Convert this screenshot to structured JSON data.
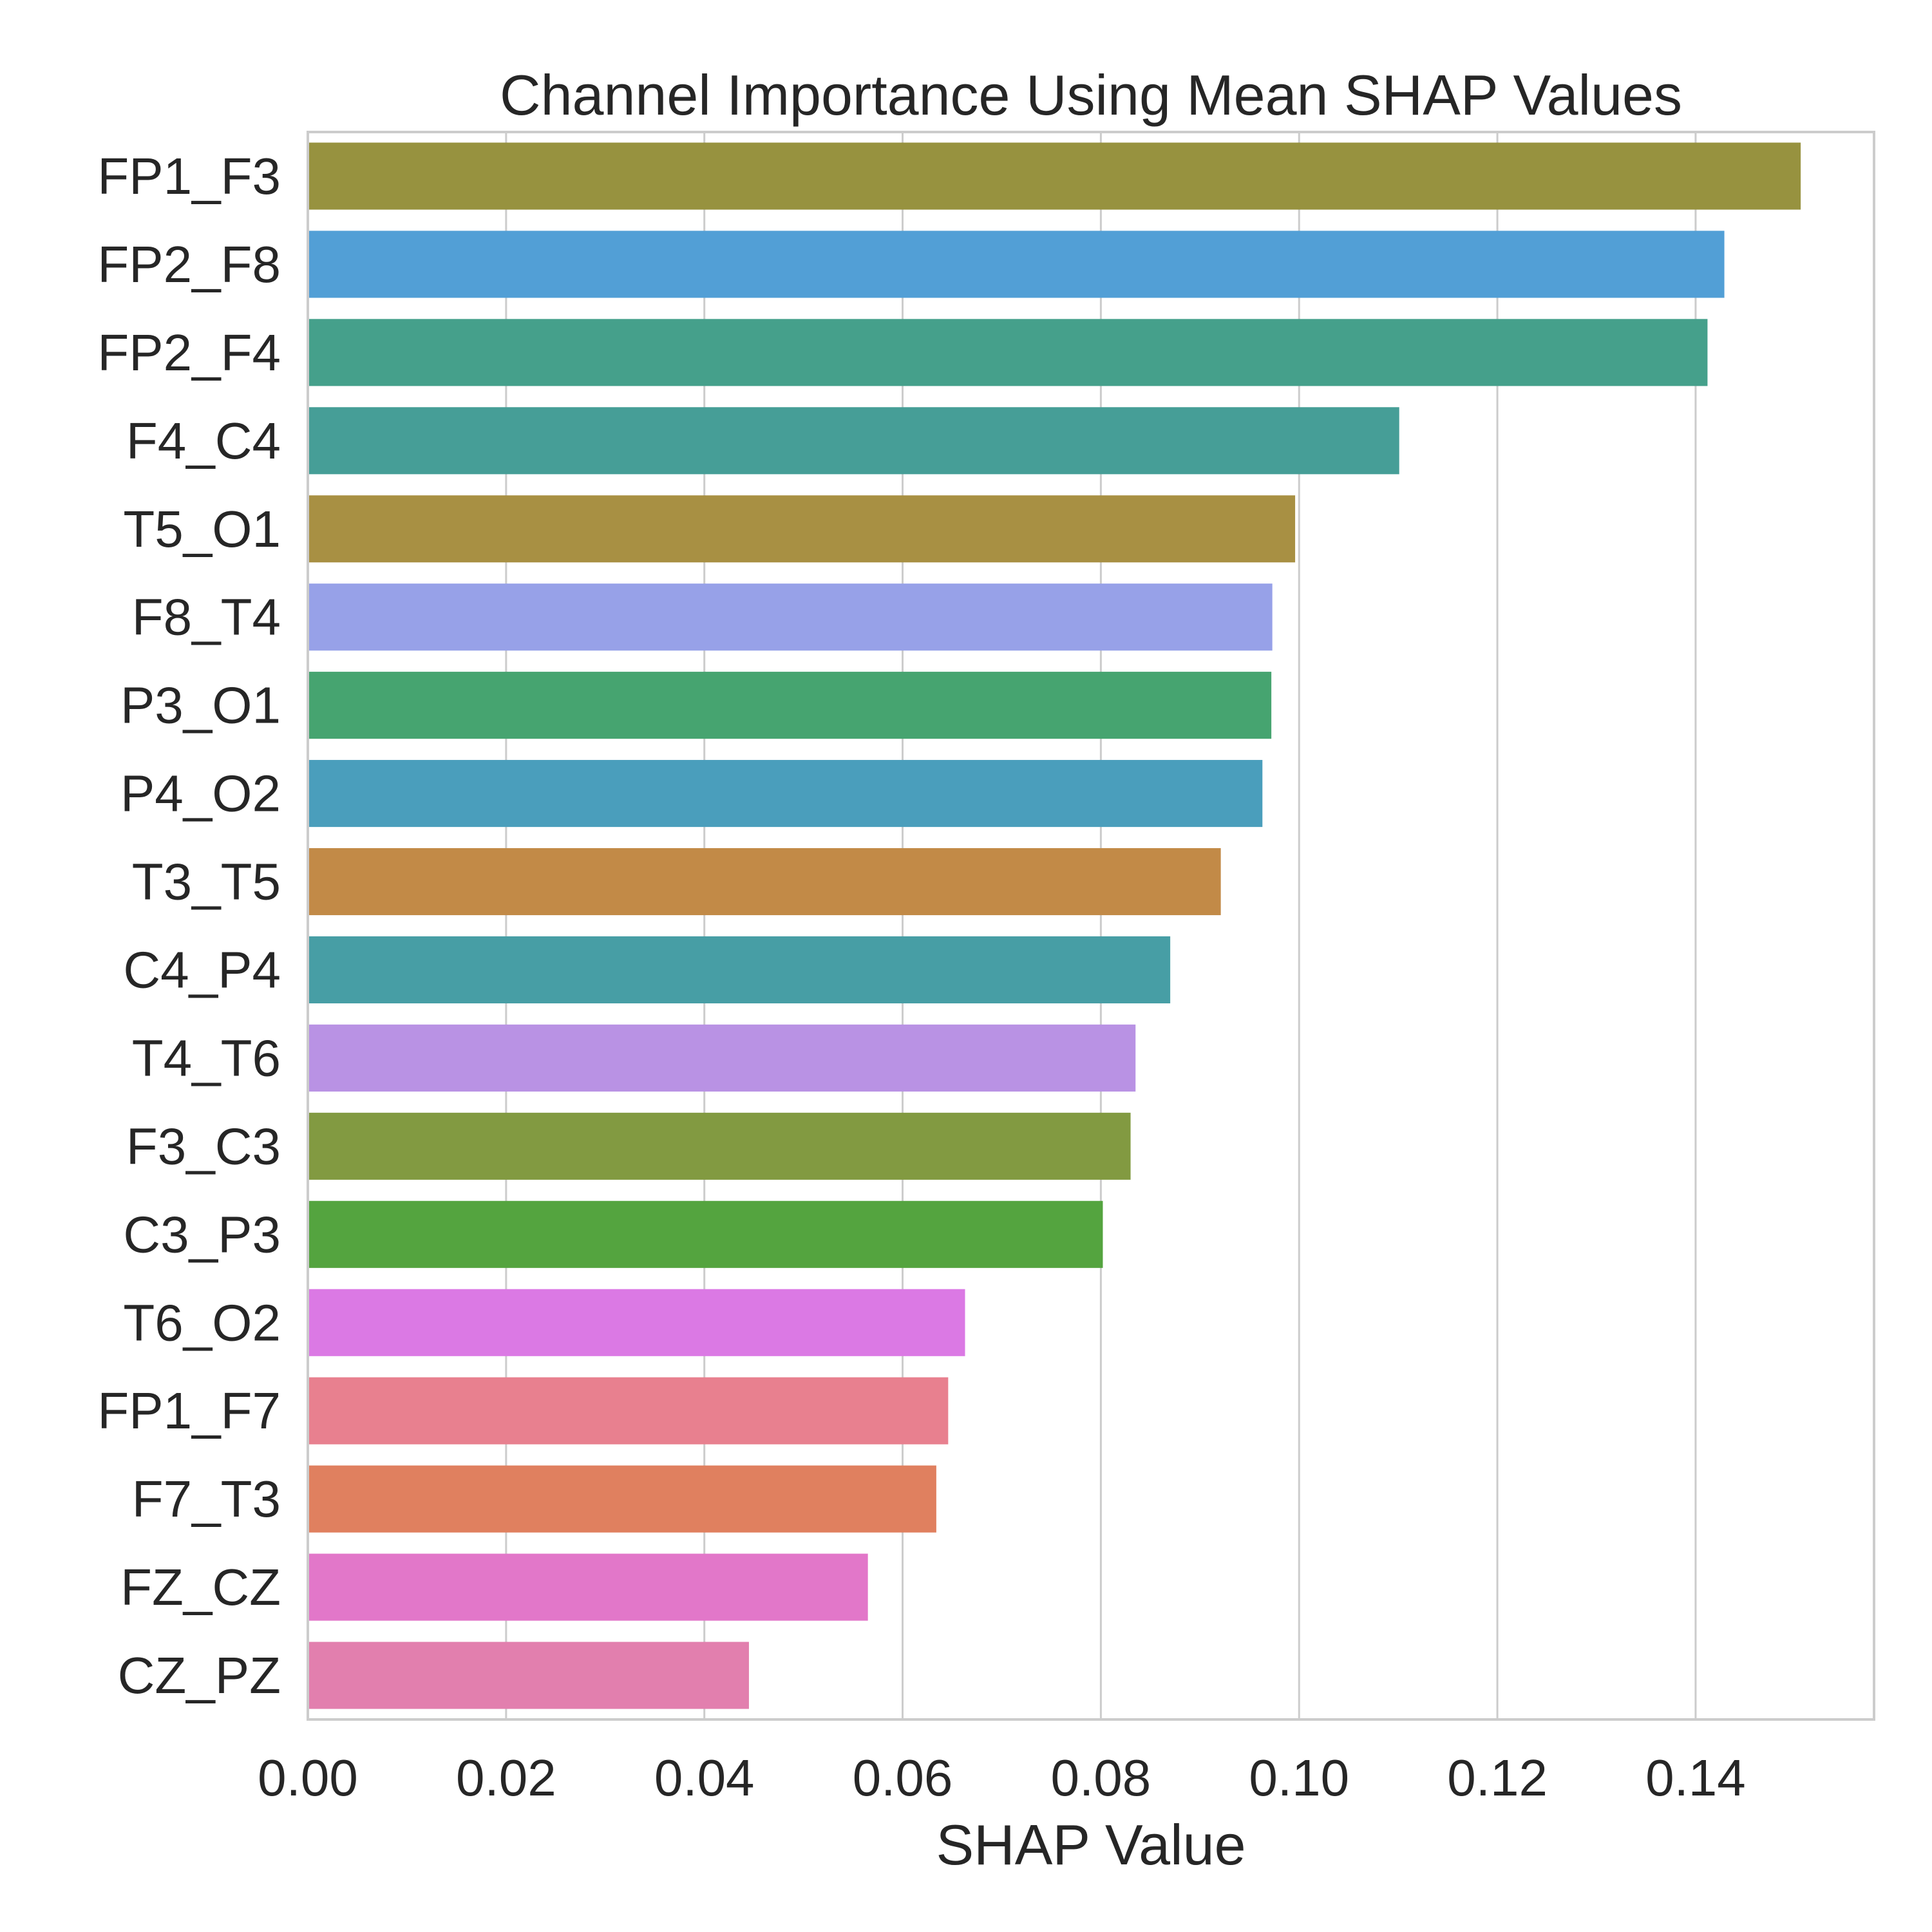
{
  "chart_data": {
    "type": "bar",
    "orientation": "horizontal",
    "title": "Channel Importance Using Mean SHAP Values",
    "xlabel": "SHAP Value",
    "ylabel": "",
    "xlim": [
      0,
      0.158
    ],
    "xticks": [
      0.0,
      0.02,
      0.04,
      0.06,
      0.08,
      0.1,
      0.12,
      0.14
    ],
    "xtick_labels": [
      "0.00",
      "0.02",
      "0.04",
      "0.06",
      "0.08",
      "0.10",
      "0.12",
      "0.14"
    ],
    "grid": true,
    "categories": [
      "FP1_F3",
      "FP2_F8",
      "FP2_F4",
      "F4_C4",
      "T5_O1",
      "F8_T4",
      "P3_O1",
      "P4_O2",
      "T3_T5",
      "C4_P4",
      "T4_T6",
      "F3_C3",
      "C3_P3",
      "T6_O2",
      "FP1_F7",
      "F7_T3",
      "FZ_CZ",
      "CZ_PZ"
    ],
    "values": [
      0.1506,
      0.1429,
      0.1412,
      0.1101,
      0.0996,
      0.0973,
      0.0972,
      0.0963,
      0.0921,
      0.087,
      0.0835,
      0.083,
      0.0802,
      0.0663,
      0.0646,
      0.0634,
      0.0565,
      0.0445
    ],
    "colors": [
      "#97923f",
      "#529fd6",
      "#45a08b",
      "#469e97",
      "#a89043",
      "#97a1e8",
      "#46a470",
      "#4a9ebc",
      "#c28a47",
      "#479ea5",
      "#b992e4",
      "#829a41",
      "#54a43f",
      "#db79e4",
      "#e8808f",
      "#e0805f",
      "#e277c9",
      "#e27fae"
    ]
  }
}
